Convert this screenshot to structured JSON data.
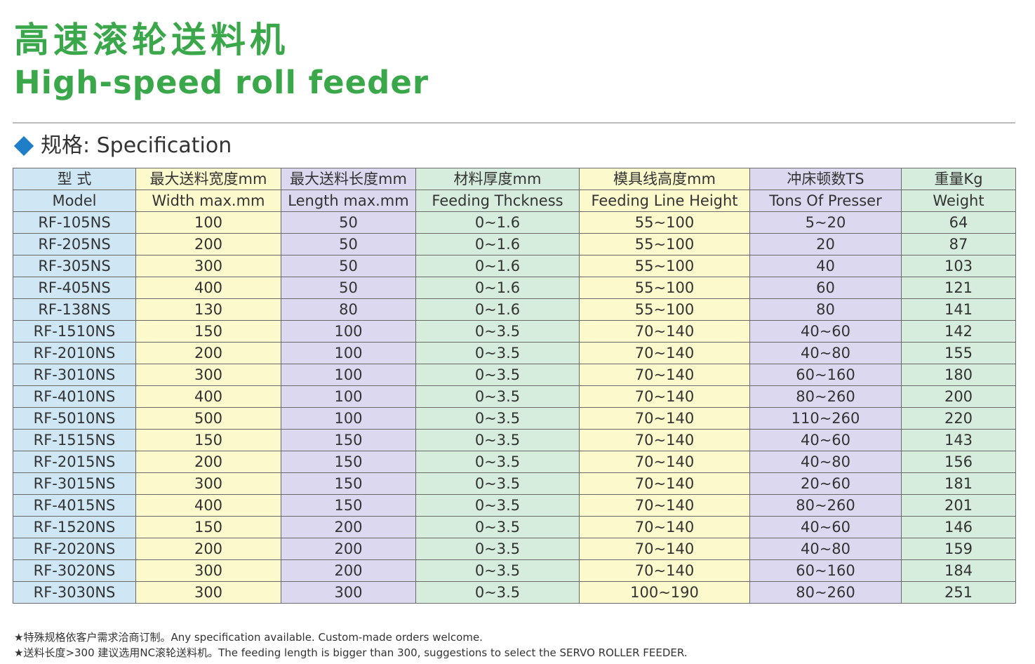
{
  "header": {
    "title_cn": "高速滚轮送料机",
    "title_en": "High-speed roll feeder",
    "section": "规格: Specification"
  },
  "table": {
    "header_cn": [
      "型 式",
      "最大送料宽度mm",
      "最大送料长度mm",
      "材料厚度mm",
      "模具线高度mm",
      "冲床顿数TS",
      "重量Kg"
    ],
    "header_en": [
      "Model",
      "Width max.mm",
      "Length  max.mm",
      "Feeding Thckness",
      "Feeding Line Height",
      "Tons Of Presser",
      "Weight"
    ],
    "rows": [
      [
        "RF-105NS",
        "100",
        "50",
        "0~1.6",
        "55~100",
        "5~20",
        "64"
      ],
      [
        "RF-205NS",
        "200",
        "50",
        "0~1.6",
        "55~100",
        "20",
        "87"
      ],
      [
        "RF-305NS",
        "300",
        "50",
        "0~1.6",
        "55~100",
        "40",
        "103"
      ],
      [
        "RF-405NS",
        "400",
        "50",
        "0~1.6",
        "55~100",
        "60",
        "121"
      ],
      [
        "RF-138NS",
        "130",
        "80",
        "0~1.6",
        "55~100",
        "80",
        "141"
      ],
      [
        "RF-1510NS",
        "150",
        "100",
        "0~3.5",
        "70~140",
        "40~60",
        "142"
      ],
      [
        "RF-2010NS",
        "200",
        "100",
        "0~3.5",
        "70~140",
        "40~80",
        "155"
      ],
      [
        "RF-3010NS",
        "300",
        "100",
        "0~3.5",
        "70~140",
        "60~160",
        "180"
      ],
      [
        "RF-4010NS",
        "400",
        "100",
        "0~3.5",
        "70~140",
        "80~260",
        "200"
      ],
      [
        "RF-5010NS",
        "500",
        "100",
        "0~3.5",
        "70~140",
        "110~260",
        "220"
      ],
      [
        "RF-1515NS",
        "150",
        "150",
        "0~3.5",
        "70~140",
        "40~60",
        "143"
      ],
      [
        "RF-2015NS",
        "200",
        "150",
        "0~3.5",
        "70~140",
        "40~80",
        "156"
      ],
      [
        "RF-3015NS",
        "300",
        "150",
        "0~3.5",
        "70~140",
        "20~60",
        "181"
      ],
      [
        "RF-4015NS",
        "400",
        "150",
        "0~3.5",
        "70~140",
        "80~260",
        "201"
      ],
      [
        "RF-1520NS",
        "150",
        "200",
        "0~3.5",
        "70~140",
        "40~60",
        "146"
      ],
      [
        "RF-2020NS",
        "200",
        "200",
        "0~3.5",
        "70~140",
        "40~80",
        "159"
      ],
      [
        "RF-3020NS",
        "300",
        "200",
        "0~3.5",
        "70~140",
        "60~160",
        "184"
      ],
      [
        "RF-3030NS",
        "300",
        "300",
        "0~3.5",
        "100~190",
        "80~260",
        "251"
      ]
    ]
  },
  "notes": [
    "★特殊规格依客户需求洽商订制。Any specification available. Custom-made orders welcome.",
    "★送料长度>300 建议选用NC滚轮送料机。The feeding length is bigger than 300, suggestions to select the SERVO ROLLER FEEDER."
  ]
}
